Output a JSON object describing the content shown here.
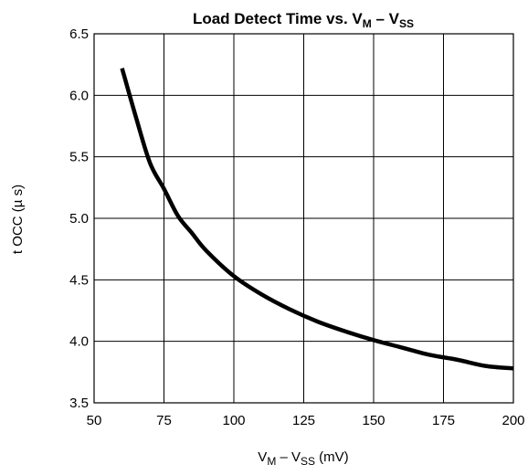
{
  "chart_data": {
    "type": "line",
    "title": {
      "main": "Load Detect Time vs. V",
      "sub1": "M",
      "mid": " – V",
      "sub2": "SS"
    },
    "xlabel": {
      "main": "V",
      "sub1": "M",
      "mid": " – V",
      "sub2": "SS",
      "tail": " (mV)"
    },
    "ylabel": "t OCC (µ s)",
    "xlim": [
      50,
      200
    ],
    "ylim": [
      3.5,
      6.5
    ],
    "xticks": [
      50,
      75,
      100,
      125,
      150,
      175,
      200
    ],
    "xtick_labels": [
      "50",
      "75",
      "100",
      "125",
      "150",
      "175",
      "200"
    ],
    "yticks": [
      3.5,
      4.0,
      4.5,
      5.0,
      5.5,
      6.0,
      6.5
    ],
    "ytick_labels": [
      "3.5",
      "4.0",
      "4.5",
      "5.0",
      "5.5",
      "6.0",
      "6.5"
    ],
    "grid": true,
    "series": [
      {
        "x": [
          60,
          65,
          70,
          75,
          80,
          85,
          90,
          100,
          110,
          120,
          130,
          140,
          150,
          160,
          170,
          180,
          190,
          200
        ],
        "y": [
          6.22,
          5.82,
          5.45,
          5.24,
          5.02,
          4.88,
          4.74,
          4.53,
          4.38,
          4.26,
          4.16,
          4.08,
          4.01,
          3.95,
          3.89,
          3.85,
          3.8,
          3.78
        ]
      }
    ]
  }
}
